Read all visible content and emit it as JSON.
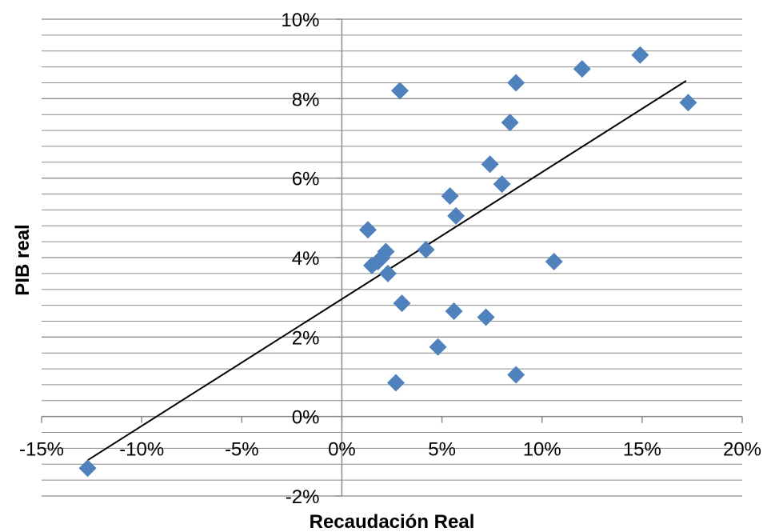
{
  "chart_data": {
    "type": "scatter",
    "title": "",
    "xlabel": "Recaudación  Real",
    "ylabel": "PIB real",
    "xlim": [
      -15,
      20
    ],
    "ylim": [
      -2,
      10
    ],
    "x_tick_labels": [
      "-15%",
      "-10%",
      "-5%",
      "0%",
      "5%",
      "10%",
      "15%",
      "20%"
    ],
    "y_tick_labels": [
      "-2%",
      "0%",
      "2%",
      "4%",
      "6%",
      "8%",
      "10%"
    ],
    "grid": "horizontal, minor every 0.4%",
    "marker": "diamond",
    "colors": {
      "points": "#4f81bd",
      "trendline": "#000000",
      "grid": "#8c8c8c",
      "axis": "#8c8c8c"
    },
    "series": [
      {
        "points": [
          {
            "x": -12.7,
            "y": -1.3
          },
          {
            "x": 1.3,
            "y": 4.7
          },
          {
            "x": 1.5,
            "y": 3.8
          },
          {
            "x": 1.8,
            "y": 3.9
          },
          {
            "x": 2.0,
            "y": 4.0
          },
          {
            "x": 2.2,
            "y": 4.15
          },
          {
            "x": 2.3,
            "y": 3.6
          },
          {
            "x": 2.7,
            "y": 0.85
          },
          {
            "x": 2.9,
            "y": 8.2
          },
          {
            "x": 3.0,
            "y": 2.85
          },
          {
            "x": 4.2,
            "y": 4.2
          },
          {
            "x": 4.8,
            "y": 1.75
          },
          {
            "x": 5.4,
            "y": 5.55
          },
          {
            "x": 5.6,
            "y": 2.65
          },
          {
            "x": 5.7,
            "y": 5.05
          },
          {
            "x": 7.2,
            "y": 2.5
          },
          {
            "x": 7.4,
            "y": 6.35
          },
          {
            "x": 8.0,
            "y": 5.85
          },
          {
            "x": 8.4,
            "y": 7.4
          },
          {
            "x": 8.7,
            "y": 8.4
          },
          {
            "x": 8.7,
            "y": 1.05
          },
          {
            "x": 10.6,
            "y": 3.9
          },
          {
            "x": 12.0,
            "y": 8.75
          },
          {
            "x": 14.9,
            "y": 9.1
          },
          {
            "x": 17.3,
            "y": 7.9
          }
        ]
      }
    ],
    "trendline": {
      "x": [
        -12.7,
        17.2
      ],
      "y": [
        -1.1,
        8.45
      ]
    }
  }
}
